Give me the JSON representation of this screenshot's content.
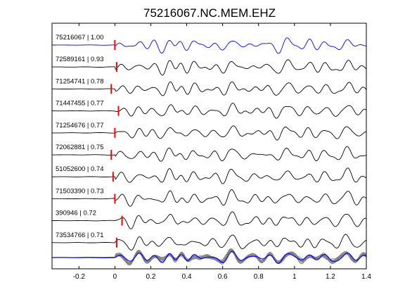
{
  "chart_data": {
    "type": "line",
    "title": "75216067.NC.MEM.EHZ",
    "xlabel": "",
    "ylabel": "",
    "xlim": [
      -0.35,
      1.4
    ],
    "xticks": [
      -0.2,
      0,
      0.2,
      0.4,
      0.6,
      0.8,
      1,
      1.2,
      1.4
    ],
    "xtick_labels": [
      "-0.2",
      "0",
      "0.2",
      "0.4",
      "0.6",
      "0.8",
      "1",
      "1.2",
      "1.4"
    ],
    "grid": false,
    "colors": {
      "reference_trace": "#0000ff",
      "trace": "#000000",
      "pick_marker": "#ff0000",
      "stack_trace": "#808080",
      "axes": "#000000"
    },
    "traces": [
      {
        "label": "75216067 | 1.00",
        "event_id": "75216067",
        "correlation": 1.0,
        "pick_time": 0.0
      },
      {
        "label": "72589161 | 0.93",
        "event_id": "72589161",
        "correlation": 0.93,
        "pick_time": 0.01
      },
      {
        "label": "71254741 | 0.78",
        "event_id": "71254741",
        "correlation": 0.78,
        "pick_time": -0.02
      },
      {
        "label": "71447455 | 0.77",
        "event_id": "71447455",
        "correlation": 0.77,
        "pick_time": 0.02
      },
      {
        "label": "71254676 | 0.77",
        "event_id": "71254676",
        "correlation": 0.77,
        "pick_time": 0.0
      },
      {
        "label": "72062881 | 0.75",
        "event_id": "72062881",
        "correlation": 0.75,
        "pick_time": -0.02
      },
      {
        "label": "51052600 | 0.74",
        "event_id": "51052600",
        "correlation": 0.74,
        "pick_time": -0.01
      },
      {
        "label": "71503390 | 0.73",
        "event_id": "71503390",
        "correlation": 0.73,
        "pick_time": 0.0
      },
      {
        "label": "390946 | 0.72",
        "event_id": "390946",
        "correlation": 0.72,
        "pick_time": 0.04
      },
      {
        "label": "73534766 | 0.71",
        "event_id": "73534766",
        "correlation": 0.71,
        "pick_time": 0.01
      }
    ],
    "stack": {
      "overlay_count": 10,
      "reference_color": "#0000ff"
    }
  }
}
